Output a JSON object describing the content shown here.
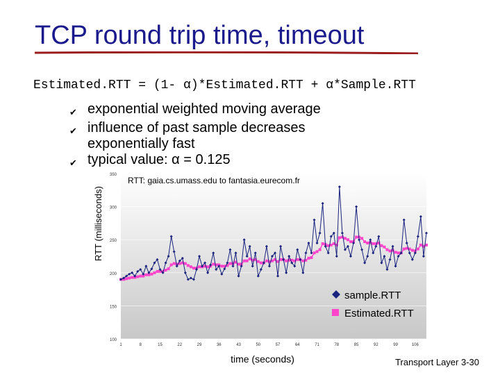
{
  "slide": {
    "title": "TCP round trip time, timeout",
    "formula": "Estimated.RTT = (1- α)*Estimated.RTT + α*Sample.RTT",
    "bullets": [
      "exponential weighted moving average",
      "influence of past sample decreases exponentially fast",
      "typical value: α = 0.125"
    ],
    "footer": "Transport Layer 3-30",
    "colors": {
      "title": "#1a1a8c",
      "underline": "#9b1c1c",
      "sample": "#1a237e",
      "estimated": "#ff44cc"
    }
  },
  "chart_data": {
    "type": "line",
    "title": "RTT: gaia.cs.umass.edu to fantasia.eurecom.fr",
    "xlabel": "time (seconds)",
    "ylabel": "RTT (milliseconds)",
    "ylim": [
      100,
      350
    ],
    "yticks": [
      100,
      150,
      200,
      250,
      300,
      350
    ],
    "xlim": [
      1,
      110
    ],
    "xticks": [
      1,
      8,
      15,
      22,
      29,
      36,
      43,
      50,
      57,
      64,
      71,
      78,
      85,
      92,
      99,
      106
    ],
    "legend_position": "bottom-right",
    "series": [
      {
        "name": "sample.RTT",
        "values": [
          190,
          192,
          195,
          198,
          200,
          195,
          202,
          205,
          198,
          210,
          200,
          206,
          215,
          220,
          205,
          200,
          215,
          225,
          255,
          232,
          210,
          218,
          222,
          200,
          190,
          192,
          190,
          205,
          225,
          210,
          215,
          200,
          212,
          230,
          205,
          210,
          198,
          206,
          215,
          235,
          210,
          230,
          195,
          210,
          250,
          225,
          240,
          210,
          230,
          195,
          205,
          215,
          240,
          210,
          225,
          230,
          195,
          240,
          220,
          200,
          225,
          215,
          210,
          235,
          220,
          200,
          230,
          245,
          230,
          280,
          245,
          260,
          305,
          240,
          230,
          255,
          260,
          225,
          330,
          260,
          235,
          240,
          225,
          245,
          300,
          250,
          235,
          215,
          225,
          250,
          230,
          240,
          255,
          215,
          225,
          205,
          220,
          240,
          210,
          225,
          230,
          280,
          245,
          230,
          220,
          230,
          255,
          285,
          225,
          260
        ]
      },
      {
        "name": "Estimated.RTT",
        "values": [
          190,
          190,
          191,
          192,
          193,
          193,
          194,
          195,
          195,
          197,
          197,
          198,
          200,
          202,
          202,
          202,
          204,
          206,
          212,
          214,
          213,
          214,
          215,
          214,
          211,
          209,
          207,
          207,
          209,
          209,
          210,
          209,
          210,
          213,
          212,
          212,
          210,
          210,
          211,
          214,
          214,
          216,
          213,
          213,
          218,
          218,
          221,
          219,
          220,
          217,
          215,
          215,
          218,
          217,
          218,
          220,
          217,
          220,
          220,
          218,
          219,
          219,
          218,
          220,
          220,
          218,
          219,
          222,
          223,
          230,
          232,
          235,
          244,
          243,
          241,
          242,
          244,
          242,
          253,
          254,
          252,
          250,
          247,
          247,
          254,
          254,
          252,
          247,
          245,
          246,
          244,
          244,
          245,
          241,
          239,
          235,
          233,
          234,
          231,
          230,
          230,
          236,
          237,
          236,
          234,
          233,
          236,
          242,
          240,
          242
        ]
      }
    ]
  }
}
